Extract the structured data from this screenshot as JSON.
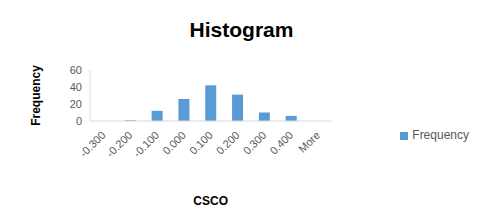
{
  "chart_data": {
    "type": "bar",
    "title": "Histogram",
    "x_label": "CSCO",
    "y_label": "Frequency",
    "categories": [
      "-0.300",
      "-0.200",
      "-0.100",
      "0.000",
      "0.100",
      "0.200",
      "0.300",
      "0.400",
      "More"
    ],
    "series": [
      {
        "name": "Frequency",
        "color": "#5b9bd5",
        "values": [
          0,
          1,
          12,
          26,
          42,
          31,
          10,
          6,
          0
        ]
      }
    ],
    "ylim": [
      0,
      60
    ],
    "yticks": [
      0,
      20,
      40,
      60
    ],
    "grid": false,
    "legend": "right"
  }
}
